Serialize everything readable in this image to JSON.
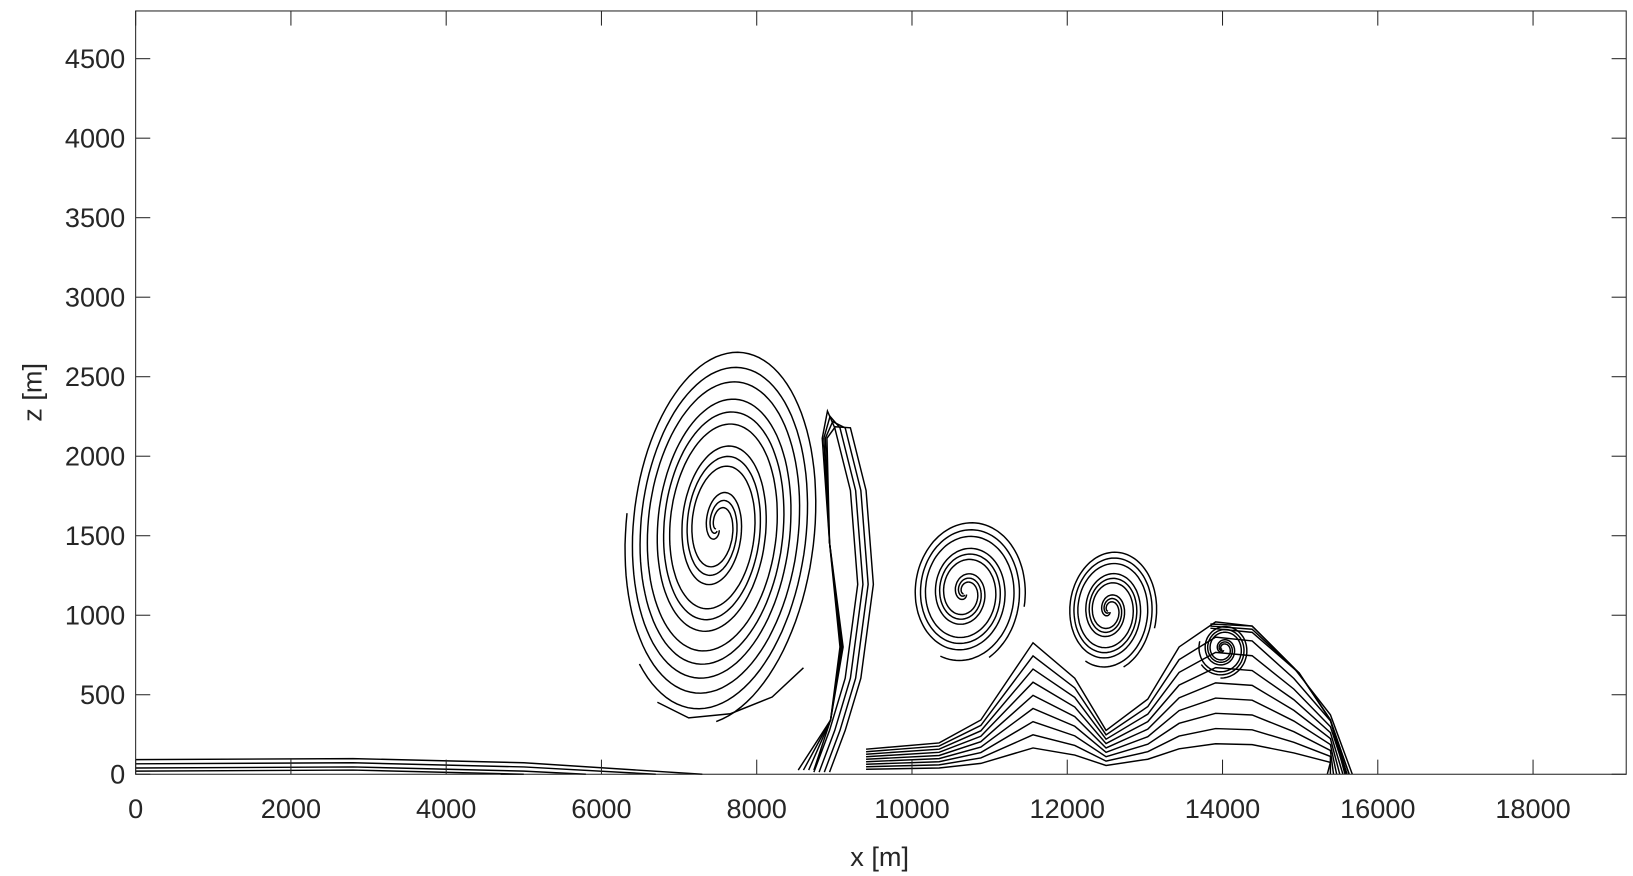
{
  "chart_data": {
    "type": "contour",
    "xlabel": "x [m]",
    "ylabel": "z [m]",
    "xlim": [
      0,
      19200
    ],
    "ylim": [
      0,
      4800
    ],
    "xticks": [
      0,
      2000,
      4000,
      6000,
      8000,
      10000,
      12000,
      14000,
      16000,
      18000
    ],
    "yticks": [
      0,
      500,
      1000,
      1500,
      2000,
      2500,
      3000,
      3500,
      4000,
      4500
    ],
    "color": "#000000",
    "grid": false
  }
}
